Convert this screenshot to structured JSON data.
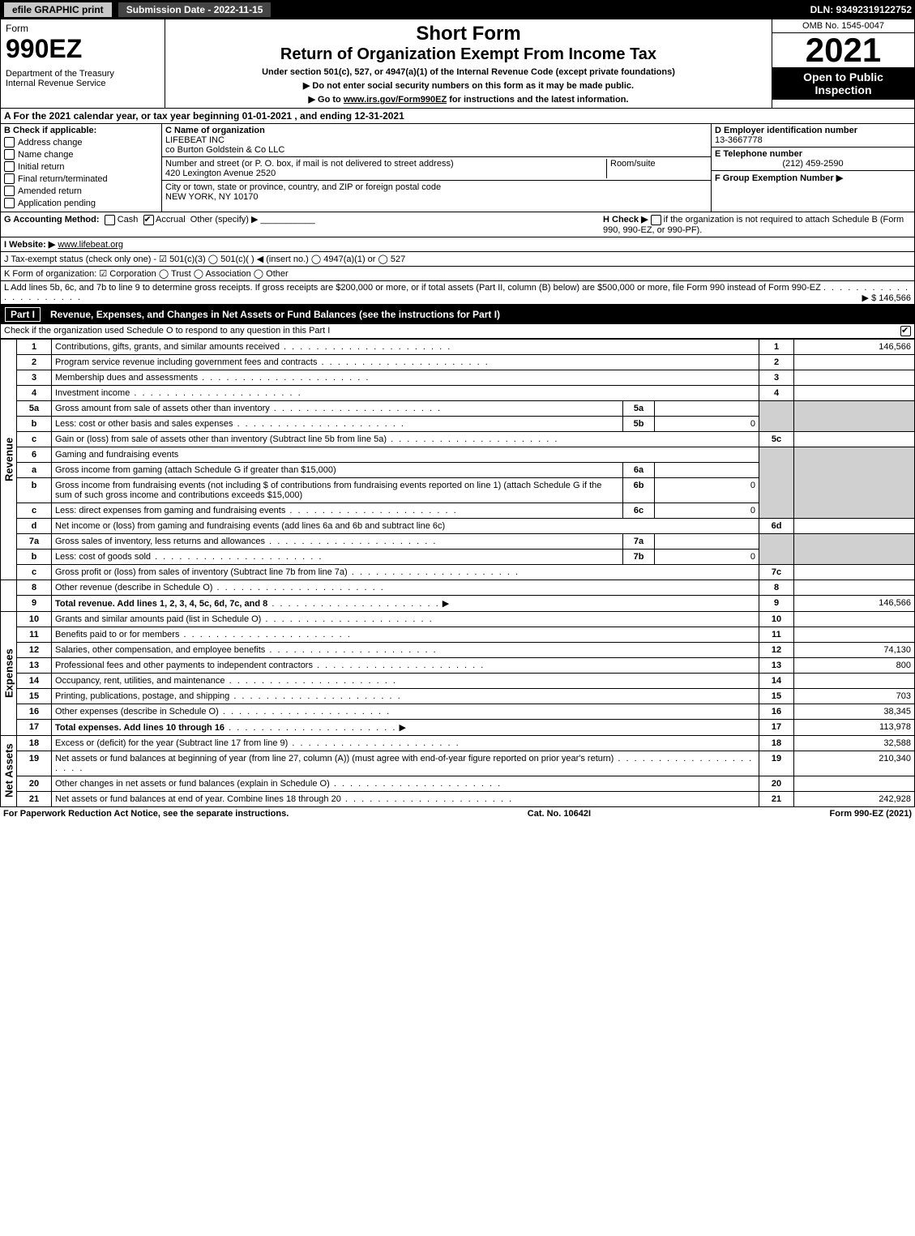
{
  "topbar": {
    "efile": "efile GRAPHIC print",
    "submission": "Submission Date - 2022-11-15",
    "dln": "DLN: 93492319122752"
  },
  "header": {
    "form_word": "Form",
    "form_num": "990EZ",
    "dept": "Department of the Treasury\nInternal Revenue Service",
    "title1": "Short Form",
    "title2": "Return of Organization Exempt From Income Tax",
    "subtitle": "Under section 501(c), 527, or 4947(a)(1) of the Internal Revenue Code (except private foundations)",
    "bullet1": "▶ Do not enter social security numbers on this form as it may be made public.",
    "bullet2_prefix": "▶ Go to ",
    "bullet2_link": "www.irs.gov/Form990EZ",
    "bullet2_suffix": " for instructions and the latest information.",
    "omb": "OMB No. 1545-0047",
    "year": "2021",
    "open": "Open to Public Inspection"
  },
  "line_a": "A  For the 2021 calendar year, or tax year beginning 01-01-2021 , and ending 12-31-2021",
  "section_b": {
    "label": "B  Check if applicable:",
    "items": [
      "Address change",
      "Name change",
      "Initial return",
      "Final return/terminated",
      "Amended return",
      "Application pending"
    ]
  },
  "section_c": {
    "label": "C Name of organization",
    "name": "LIFEBEAT INC",
    "co": "co Burton Goldstein & Co LLC",
    "addr_label": "Number and street (or P. O. box, if mail is not delivered to street address)",
    "addr": "420 Lexington Avenue 2520",
    "room_label": "Room/suite",
    "city_label": "City or town, state or province, country, and ZIP or foreign postal code",
    "city": "NEW YORK, NY  10170"
  },
  "section_d": {
    "label": "D Employer identification number",
    "value": "13-3667778"
  },
  "section_e": {
    "label": "E Telephone number",
    "value": "(212) 459-2590"
  },
  "section_f": {
    "label": "F Group Exemption Number   ▶"
  },
  "line_g": {
    "label": "G Accounting Method:",
    "cash": "Cash",
    "accrual": "Accrual",
    "other": "Other (specify) ▶"
  },
  "line_h": {
    "text1": "H  Check ▶",
    "text2": "if the organization is not required to attach Schedule B (Form 990, 990-EZ, or 990-PF)."
  },
  "line_i": {
    "label": "I Website: ▶",
    "value": "www.lifebeat.org"
  },
  "line_j": "J Tax-exempt status (check only one) -  ☑ 501(c)(3)  ◯ 501(c)(  ) ◀ (insert no.)  ◯ 4947(a)(1) or  ◯ 527",
  "line_k": "K Form of organization:   ☑ Corporation   ◯ Trust   ◯ Association   ◯ Other",
  "line_l": {
    "text": "L Add lines 5b, 6c, and 7b to line 9 to determine gross receipts. If gross receipts are $200,000 or more, or if total assets (Part II, column (B) below) are $500,000 or more, file Form 990 instead of Form 990-EZ",
    "amt": "▶ $ 146,566"
  },
  "part1": {
    "label": "Part I",
    "title": "Revenue, Expenses, and Changes in Net Assets or Fund Balances (see the instructions for Part I)",
    "checknote": "Check if the organization used Schedule O to respond to any question in this Part I"
  },
  "vlabels": {
    "rev": "Revenue",
    "exp": "Expenses",
    "net": "Net Assets"
  },
  "rows": {
    "r1": {
      "n": "1",
      "d": "Contributions, gifts, grants, and similar amounts received",
      "ln": "1",
      "a": "146,566"
    },
    "r2": {
      "n": "2",
      "d": "Program service revenue including government fees and contracts",
      "ln": "2",
      "a": ""
    },
    "r3": {
      "n": "3",
      "d": "Membership dues and assessments",
      "ln": "3",
      "a": ""
    },
    "r4": {
      "n": "4",
      "d": "Investment income",
      "ln": "4",
      "a": ""
    },
    "r5a": {
      "n": "5a",
      "d": "Gross amount from sale of assets other than inventory",
      "il": "5a",
      "ia": ""
    },
    "r5b": {
      "n": "b",
      "d": "Less: cost or other basis and sales expenses",
      "il": "5b",
      "ia": "0"
    },
    "r5c": {
      "n": "c",
      "d": "Gain or (loss) from sale of assets other than inventory (Subtract line 5b from line 5a)",
      "ln": "5c",
      "a": ""
    },
    "r6": {
      "n": "6",
      "d": "Gaming and fundraising events"
    },
    "r6a": {
      "n": "a",
      "d": "Gross income from gaming (attach Schedule G if greater than $15,000)",
      "il": "6a",
      "ia": ""
    },
    "r6b": {
      "n": "b",
      "d": "Gross income from fundraising events (not including $            of contributions from fundraising events reported on line 1) (attach Schedule G if the sum of such gross income and contributions exceeds $15,000)",
      "il": "6b",
      "ia": "0"
    },
    "r6c": {
      "n": "c",
      "d": "Less: direct expenses from gaming and fundraising events",
      "il": "6c",
      "ia": "0"
    },
    "r6d": {
      "n": "d",
      "d": "Net income or (loss) from gaming and fundraising events (add lines 6a and 6b and subtract line 6c)",
      "ln": "6d",
      "a": ""
    },
    "r7a": {
      "n": "7a",
      "d": "Gross sales of inventory, less returns and allowances",
      "il": "7a",
      "ia": ""
    },
    "r7b": {
      "n": "b",
      "d": "Less: cost of goods sold",
      "il": "7b",
      "ia": "0"
    },
    "r7c": {
      "n": "c",
      "d": "Gross profit or (loss) from sales of inventory (Subtract line 7b from line 7a)",
      "ln": "7c",
      "a": ""
    },
    "r8": {
      "n": "8",
      "d": "Other revenue (describe in Schedule O)",
      "ln": "8",
      "a": ""
    },
    "r9": {
      "n": "9",
      "d": "Total revenue. Add lines 1, 2, 3, 4, 5c, 6d, 7c, and 8",
      "ln": "9",
      "a": "146,566",
      "arrow": "▶"
    },
    "r10": {
      "n": "10",
      "d": "Grants and similar amounts paid (list in Schedule O)",
      "ln": "10",
      "a": ""
    },
    "r11": {
      "n": "11",
      "d": "Benefits paid to or for members",
      "ln": "11",
      "a": ""
    },
    "r12": {
      "n": "12",
      "d": "Salaries, other compensation, and employee benefits",
      "ln": "12",
      "a": "74,130"
    },
    "r13": {
      "n": "13",
      "d": "Professional fees and other payments to independent contractors",
      "ln": "13",
      "a": "800"
    },
    "r14": {
      "n": "14",
      "d": "Occupancy, rent, utilities, and maintenance",
      "ln": "14",
      "a": ""
    },
    "r15": {
      "n": "15",
      "d": "Printing, publications, postage, and shipping",
      "ln": "15",
      "a": "703"
    },
    "r16": {
      "n": "16",
      "d": "Other expenses (describe in Schedule O)",
      "ln": "16",
      "a": "38,345"
    },
    "r17": {
      "n": "17",
      "d": "Total expenses. Add lines 10 through 16",
      "ln": "17",
      "a": "113,978",
      "arrow": "▶"
    },
    "r18": {
      "n": "18",
      "d": "Excess or (deficit) for the year (Subtract line 17 from line 9)",
      "ln": "18",
      "a": "32,588"
    },
    "r19": {
      "n": "19",
      "d": "Net assets or fund balances at beginning of year (from line 27, column (A)) (must agree with end-of-year figure reported on prior year's return)",
      "ln": "19",
      "a": "210,340"
    },
    "r20": {
      "n": "20",
      "d": "Other changes in net assets or fund balances (explain in Schedule O)",
      "ln": "20",
      "a": ""
    },
    "r21": {
      "n": "21",
      "d": "Net assets or fund balances at end of year. Combine lines 18 through 20",
      "ln": "21",
      "a": "242,928"
    }
  },
  "footer": {
    "left": "For Paperwork Reduction Act Notice, see the separate instructions.",
    "mid": "Cat. No. 10642I",
    "right": "Form 990-EZ (2021)"
  }
}
